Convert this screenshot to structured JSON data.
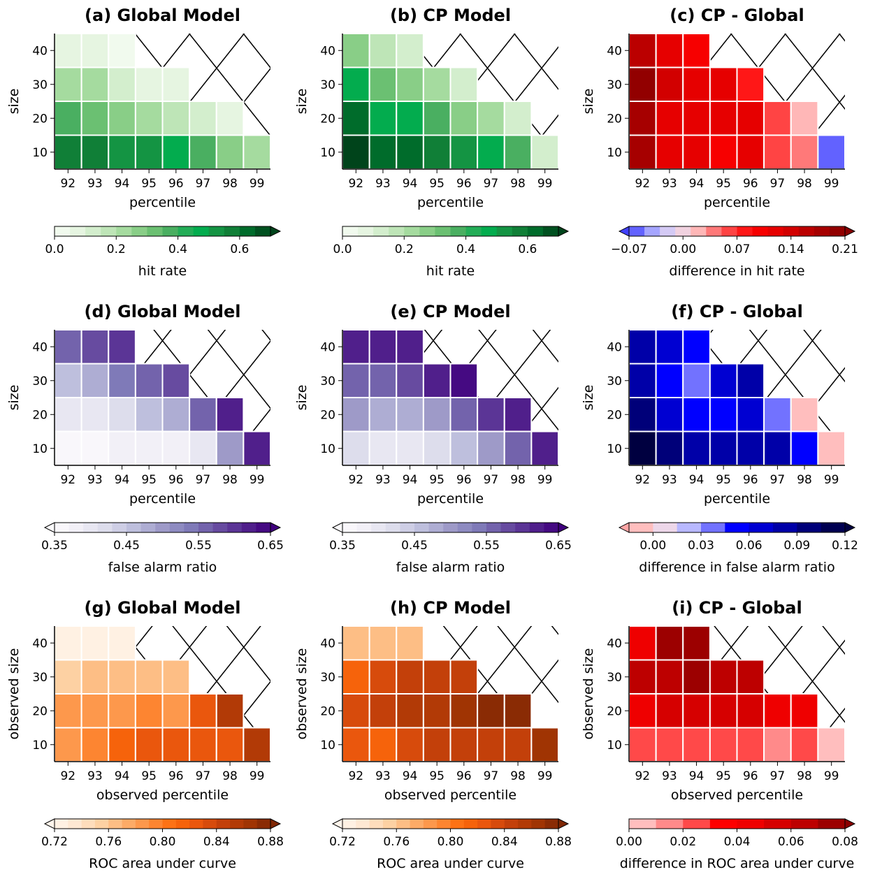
{
  "chart_data": [
    {
      "type": "heatmap",
      "title": "(a) Global Model",
      "xlabel": "percentile",
      "ylabel": "size",
      "x": [
        "92",
        "93",
        "94",
        "95",
        "96",
        "97",
        "98",
        "99"
      ],
      "y": [
        "10",
        "20",
        "30",
        "40"
      ],
      "values": [
        [
          0.58,
          0.56,
          0.54,
          0.5,
          0.46,
          0.36,
          0.28,
          0.2
        ],
        [
          0.38,
          0.34,
          0.28,
          0.2,
          0.16,
          0.12,
          0.06,
          null
        ],
        [
          0.22,
          0.2,
          0.14,
          0.06,
          0.05,
          null,
          null,
          null
        ],
        [
          0.08,
          0.06,
          0.04,
          null,
          null,
          null,
          null,
          null
        ]
      ],
      "colorbar": {
        "label": "hit rate",
        "min": 0.0,
        "max": 0.7,
        "ticks": [
          "0.0",
          "0.2",
          "0.4",
          "0.6"
        ],
        "tick_values": [
          0.0,
          0.2,
          0.4,
          0.6
        ],
        "extend": "max",
        "cmap": "Greens",
        "levels": 14
      },
      "hatched": "upper-right cells with no data"
    },
    {
      "type": "heatmap",
      "title": "(b) CP Model",
      "xlabel": "percentile",
      "ylabel": "size",
      "x": [
        "92",
        "93",
        "94",
        "95",
        "96",
        "97",
        "98",
        "99"
      ],
      "y": [
        "10",
        "20",
        "30",
        "40"
      ],
      "values": [
        [
          0.74,
          0.64,
          0.6,
          0.58,
          0.54,
          0.48,
          0.38,
          0.12
        ],
        [
          0.62,
          0.48,
          0.46,
          0.36,
          0.26,
          0.2,
          0.1,
          null
        ],
        [
          0.46,
          0.32,
          0.26,
          0.2,
          0.14,
          null,
          null,
          null
        ],
        [
          0.28,
          0.18,
          0.14,
          null,
          null,
          null,
          null,
          null
        ]
      ],
      "colorbar": {
        "label": "hit rate",
        "min": 0.0,
        "max": 0.7,
        "ticks": [
          "0.0",
          "0.2",
          "0.4",
          "0.6"
        ],
        "tick_values": [
          0.0,
          0.2,
          0.4,
          0.6
        ],
        "extend": "max",
        "cmap": "Greens",
        "levels": 14
      },
      "hatched": "upper-right cells with no data"
    },
    {
      "type": "heatmap",
      "title": "(c) CP - Global",
      "xlabel": "percentile",
      "ylabel": "size",
      "x": [
        "92",
        "93",
        "94",
        "95",
        "96",
        "97",
        "98",
        "99"
      ],
      "y": [
        "10",
        "20",
        "30",
        "40"
      ],
      "values": [
        [
          0.17,
          0.12,
          0.11,
          0.1,
          0.11,
          0.05,
          0.04,
          -0.06
        ],
        [
          0.18,
          0.12,
          0.12,
          0.12,
          0.12,
          0.05,
          0.01,
          null
        ],
        [
          0.2,
          0.13,
          0.12,
          0.12,
          0.08,
          null,
          null,
          null
        ],
        [
          0.16,
          0.11,
          0.1,
          null,
          null,
          null,
          null,
          null
        ]
      ],
      "colorbar": {
        "label": "difference in hit rate",
        "min": -0.07,
        "max": 0.21,
        "ticks": [
          "−0.07",
          "0.00",
          "0.07",
          "0.14",
          "0.21"
        ],
        "tick_values": [
          -0.07,
          0.0,
          0.07,
          0.14,
          0.21
        ],
        "extend": "both",
        "cmap": "bwr_seismic",
        "levels": 14
      },
      "hatched": "upper-right cells with no data"
    },
    {
      "type": "heatmap",
      "title": "(d) Global Model",
      "xlabel": "percentile",
      "ylabel": "size",
      "x": [
        "92",
        "93",
        "94",
        "95",
        "96",
        "97",
        "98",
        "99"
      ],
      "y": [
        "10",
        "20",
        "30",
        "40"
      ],
      "values": [
        [
          0.36,
          0.36,
          0.37,
          0.37,
          0.38,
          0.41,
          0.5,
          0.63
        ],
        [
          0.4,
          0.41,
          0.42,
          0.46,
          0.48,
          0.56,
          0.62,
          null
        ],
        [
          0.46,
          0.49,
          0.54,
          0.56,
          0.59,
          null,
          null,
          null
        ],
        [
          0.57,
          0.59,
          0.61,
          null,
          null,
          null,
          null,
          null
        ]
      ],
      "colorbar": {
        "label": "false alarm ratio",
        "min": 0.35,
        "max": 0.65,
        "ticks": [
          "0.35",
          "0.45",
          "0.55",
          "0.65"
        ],
        "tick_values": [
          0.35,
          0.45,
          0.55,
          0.65
        ],
        "extend": "both",
        "cmap": "Purples",
        "levels": 15
      },
      "hatched": "upper-right cells with no data"
    },
    {
      "type": "heatmap",
      "title": "(e) CP Model",
      "xlabel": "percentile",
      "ylabel": "size",
      "x": [
        "92",
        "93",
        "94",
        "95",
        "96",
        "97",
        "98",
        "99"
      ],
      "y": [
        "10",
        "20",
        "30",
        "40"
      ],
      "values": [
        [
          0.42,
          0.41,
          0.41,
          0.42,
          0.46,
          0.5,
          0.57,
          0.63
        ],
        [
          0.5,
          0.48,
          0.48,
          0.5,
          0.55,
          0.6,
          0.62,
          null
        ],
        [
          0.55,
          0.56,
          0.58,
          0.62,
          0.64,
          null,
          null,
          null
        ],
        [
          0.62,
          0.63,
          0.62,
          null,
          null,
          null,
          null,
          null
        ]
      ],
      "colorbar": {
        "label": "false alarm ratio",
        "min": 0.35,
        "max": 0.65,
        "ticks": [
          "0.35",
          "0.45",
          "0.55",
          "0.65"
        ],
        "tick_values": [
          0.35,
          0.45,
          0.55,
          0.65
        ],
        "extend": "both",
        "cmap": "Purples",
        "levels": 15
      },
      "hatched": "upper-right cells with no data"
    },
    {
      "type": "heatmap",
      "title": "(f) CP - Global",
      "xlabel": "percentile",
      "ylabel": "size",
      "x": [
        "92",
        "93",
        "94",
        "95",
        "96",
        "97",
        "98",
        "99"
      ],
      "y": [
        "10",
        "20",
        "30",
        "40"
      ],
      "values": [
        [
          0.12,
          0.1,
          0.09,
          0.09,
          0.09,
          0.09,
          0.05,
          -0.01
        ],
        [
          0.1,
          0.07,
          0.06,
          0.05,
          0.07,
          0.04,
          -0.01,
          null
        ],
        [
          0.09,
          0.06,
          0.04,
          0.07,
          0.08,
          null,
          null,
          null
        ],
        [
          0.08,
          0.07,
          0.05,
          null,
          null,
          null,
          null,
          null
        ]
      ],
      "colorbar": {
        "label": "difference in false alarm ratio",
        "min": -0.015,
        "max": 0.12,
        "ticks": [
          "0.00",
          "0.03",
          "0.06",
          "0.09",
          "0.12"
        ],
        "tick_values": [
          0.0,
          0.03,
          0.06,
          0.09,
          0.12
        ],
        "extend": "both",
        "cmap": "bwr_r_seismic",
        "levels": 9
      },
      "hatched": "upper-right cells with no data"
    },
    {
      "type": "heatmap",
      "title": "(g) Global Model",
      "xlabel": "observed percentile",
      "ylabel": "observed size",
      "x": [
        "92",
        "93",
        "94",
        "95",
        "96",
        "97",
        "98",
        "99"
      ],
      "y": [
        "10",
        "20",
        "30",
        "40"
      ],
      "values": [
        [
          0.785,
          0.79,
          0.812,
          0.822,
          0.824,
          0.823,
          0.828,
          0.852
        ],
        [
          0.782,
          0.785,
          0.784,
          0.79,
          0.786,
          0.823,
          0.852,
          null
        ],
        [
          0.754,
          0.762,
          0.76,
          0.764,
          0.766,
          null,
          null,
          null
        ],
        [
          0.725,
          0.727,
          0.726,
          null,
          null,
          null,
          null,
          null
        ]
      ],
      "colorbar": {
        "label": "ROC area under curve",
        "min": 0.72,
        "max": 0.88,
        "ticks": [
          "0.72",
          "0.76",
          "0.80",
          "0.84",
          "0.88"
        ],
        "tick_values": [
          0.72,
          0.76,
          0.8,
          0.84,
          0.88
        ],
        "extend": "both",
        "cmap": "Oranges",
        "levels": 16
      },
      "hatched": "upper-right cells with no data"
    },
    {
      "type": "heatmap",
      "title": "(h) CP Model",
      "xlabel": "observed percentile",
      "ylabel": "observed size",
      "x": [
        "92",
        "93",
        "94",
        "95",
        "96",
        "97",
        "98",
        "99"
      ],
      "y": [
        "10",
        "20",
        "30",
        "40"
      ],
      "values": [
        [
          0.822,
          0.818,
          0.833,
          0.842,
          0.845,
          0.843,
          0.845,
          0.864
        ],
        [
          0.835,
          0.842,
          0.852,
          0.854,
          0.864,
          0.874,
          0.874,
          null
        ],
        [
          0.812,
          0.835,
          0.842,
          0.844,
          0.848,
          null,
          null,
          null
        ],
        [
          0.762,
          0.766,
          0.766,
          null,
          null,
          null,
          null,
          null
        ]
      ],
      "colorbar": {
        "label": "ROC area under curve",
        "min": 0.72,
        "max": 0.88,
        "ticks": [
          "0.72",
          "0.76",
          "0.80",
          "0.84",
          "0.88"
        ],
        "tick_values": [
          0.72,
          0.76,
          0.8,
          0.84,
          0.88
        ],
        "extend": "both",
        "cmap": "Oranges",
        "levels": 16
      },
      "hatched": "upper-right cells with no data"
    },
    {
      "type": "heatmap",
      "title": "(i) CP - Global",
      "xlabel": "observed percentile",
      "ylabel": "observed size",
      "x": [
        "92",
        "93",
        "94",
        "95",
        "96",
        "97",
        "98",
        "99"
      ],
      "y": [
        "10",
        "20",
        "30",
        "40"
      ],
      "values": [
        [
          0.025,
          0.025,
          0.025,
          0.025,
          0.025,
          0.015,
          0.025,
          0.005
        ],
        [
          0.045,
          0.055,
          0.055,
          0.055,
          0.055,
          0.045,
          0.045,
          null
        ],
        [
          0.065,
          0.065,
          0.075,
          0.065,
          0.065,
          null,
          null,
          null
        ],
        [
          0.045,
          0.075,
          0.075,
          null,
          null,
          null,
          null,
          null
        ]
      ],
      "colorbar": {
        "label": "difference in ROC area under curve",
        "min": 0.0,
        "max": 0.08,
        "ticks": [
          "0.00",
          "0.02",
          "0.04",
          "0.06",
          "0.08"
        ],
        "tick_values": [
          0.0,
          0.02,
          0.04,
          0.06,
          0.08
        ],
        "extend": "max",
        "cmap": "Reds_seismic",
        "levels": 8
      },
      "hatched": "upper-right cells with no data"
    }
  ]
}
